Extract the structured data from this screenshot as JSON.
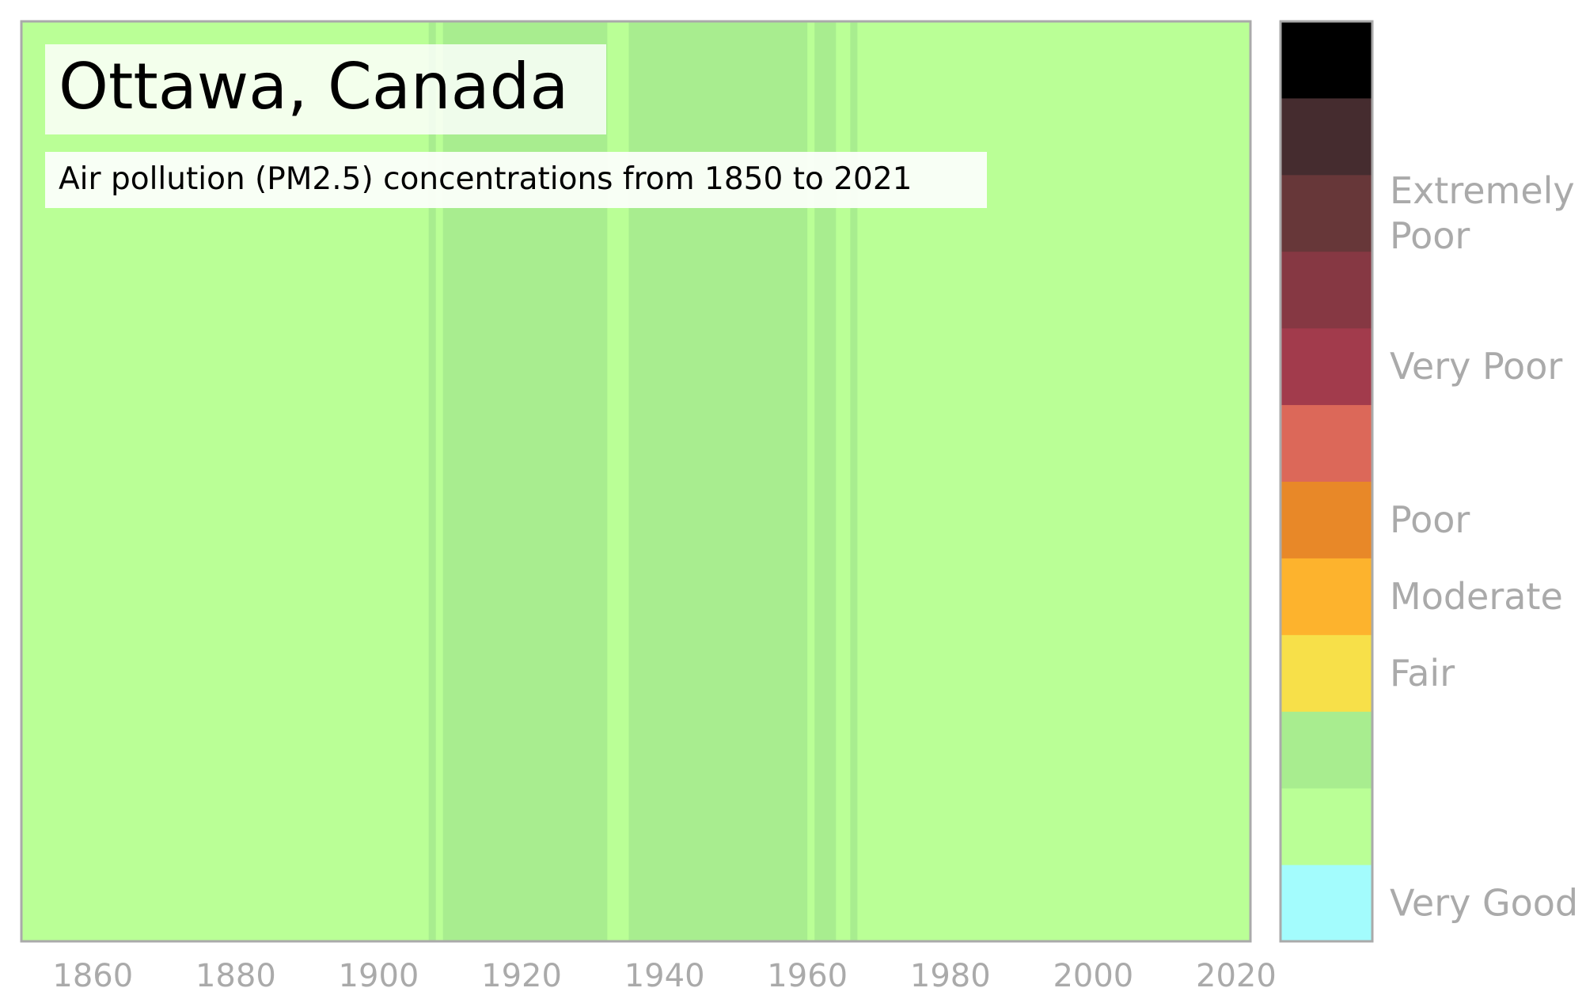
{
  "chart_data": {
    "type": "heatmap",
    "title": "Ottawa, Canada",
    "subtitle": "Air pollution (PM2.5) concentrations from 1850 to 2021",
    "xlim": [
      1850,
      2022
    ],
    "x_ticks": [
      1860,
      1880,
      1900,
      1920,
      1940,
      1960,
      1980,
      2000,
      2020
    ],
    "grid": false,
    "palette": [
      "#a3fcfd",
      "#baff96",
      "#a8ed8f",
      "#f7e049",
      "#fdb32d",
      "#e88828",
      "#dc6859",
      "#a23b4c",
      "#863843",
      "#673739",
      "#452c2f",
      "#000000"
    ],
    "default_level": 1,
    "stripe_segments": [
      {
        "start": 1850,
        "end": 1907,
        "level": 1
      },
      {
        "start": 1907,
        "end": 1908,
        "level": 2
      },
      {
        "start": 1908,
        "end": 1909,
        "level": 1
      },
      {
        "start": 1909,
        "end": 1932,
        "level": 2
      },
      {
        "start": 1932,
        "end": 1935,
        "level": 1
      },
      {
        "start": 1935,
        "end": 1960,
        "level": 2
      },
      {
        "start": 1960,
        "end": 1961,
        "level": 1
      },
      {
        "start": 1961,
        "end": 1964,
        "level": 2
      },
      {
        "start": 1964,
        "end": 1966,
        "level": 1
      },
      {
        "start": 1966,
        "end": 1967,
        "level": 2
      },
      {
        "start": 1967,
        "end": 2022,
        "level": 1
      }
    ],
    "legend": {
      "placement": "right",
      "labels": [
        {
          "text": "Very Good",
          "at_level": 0.0
        },
        {
          "text": "Fair",
          "at_level": 3.0
        },
        {
          "text": "Moderate",
          "at_level": 4.0
        },
        {
          "text": "Poor",
          "at_level": 5.0
        },
        {
          "text": "Very Poor",
          "at_level": 7.0
        },
        {
          "text": "Extremely\nPoor",
          "at_level": 9.0
        }
      ]
    }
  }
}
